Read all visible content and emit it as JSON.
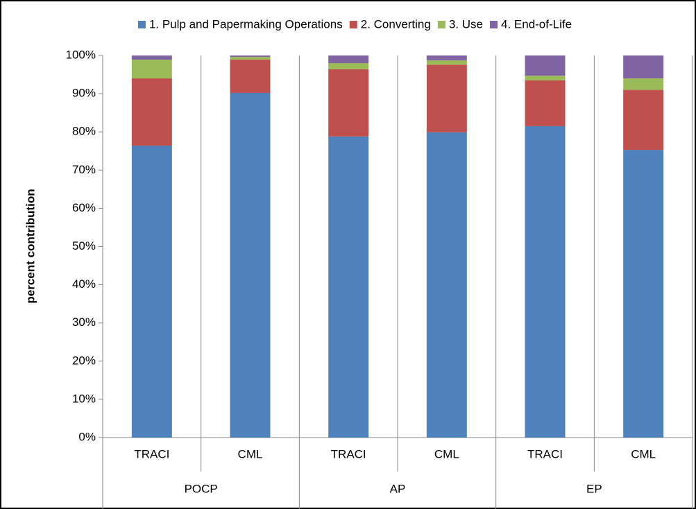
{
  "chart_data": {
    "type": "stacked_bar",
    "y_label": "percent contribution",
    "groups": [
      "POCP",
      "AP",
      "EP"
    ],
    "categories": [
      "TRACI",
      "CML",
      "TRACI",
      "CML",
      "TRACI",
      "CML"
    ],
    "series": [
      {
        "name": "1. Pulp and Papermaking Operations",
        "color": "#4f81bd",
        "values": [
          76.4,
          90.2,
          78.8,
          79.9,
          81.5,
          75.3
        ]
      },
      {
        "name": "2. Converting",
        "color": "#c0504d",
        "values": [
          17.6,
          8.7,
          17.6,
          17.7,
          12.0,
          15.7
        ]
      },
      {
        "name": "3. Use",
        "color": "#9bbb59",
        "values": [
          4.9,
          0.7,
          1.6,
          1.1,
          1.2,
          3.0
        ]
      },
      {
        "name": "4. End-of-Life",
        "color": "#8064a2",
        "values": [
          1.1,
          0.4,
          2.0,
          1.3,
          5.3,
          6.0
        ]
      }
    ],
    "ylim": [
      0,
      100
    ],
    "yticks": [
      {
        "value": 0,
        "label": "0%"
      },
      {
        "value": 10,
        "label": "10%"
      },
      {
        "value": 20,
        "label": "20%"
      },
      {
        "value": 30,
        "label": "30%"
      },
      {
        "value": 40,
        "label": "40%"
      },
      {
        "value": 50,
        "label": "50%"
      },
      {
        "value": 60,
        "label": "60%"
      },
      {
        "value": 70,
        "label": "70%"
      },
      {
        "value": 80,
        "label": "80%"
      },
      {
        "value": 90,
        "label": "90%"
      },
      {
        "value": 100,
        "label": "100%"
      }
    ],
    "legend": "top"
  }
}
